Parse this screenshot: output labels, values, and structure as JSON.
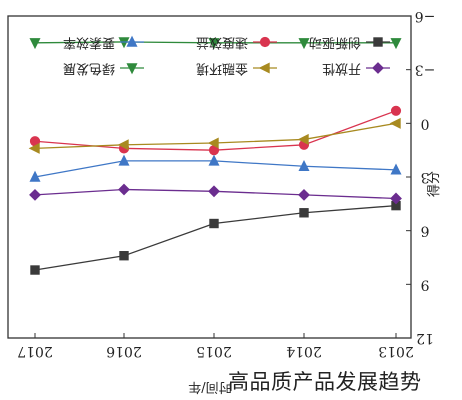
{
  "caption": "高品质产品发展趋势",
  "chart_data": {
    "type": "line",
    "orientation": "rotated-180",
    "xlabel": "时间/年",
    "ylabel": "得分",
    "categories": [
      "2013",
      "2014",
      "2015",
      "2016",
      "2017"
    ],
    "yticks": [
      "−6",
      "−3",
      "0",
      "3",
      "6",
      "9",
      "12"
    ],
    "ylim": [
      -6,
      12
    ],
    "grid": false,
    "legend_position": "top",
    "series": [
      {
        "name": "创新驱动",
        "color": "#3a3a3a",
        "marker": "square",
        "values": [
          4.6,
          5.0,
          5.6,
          7.4,
          8.2
        ]
      },
      {
        "name": "速度效益",
        "color": "#d9344f",
        "marker": "circle",
        "values": [
          -0.7,
          1.2,
          1.5,
          1.4,
          1.0
        ]
      },
      {
        "name": "要素效率",
        "color": "#3f77c6",
        "marker": "triangle",
        "values": [
          2.6,
          2.4,
          2.1,
          2.1,
          3.0
        ]
      },
      {
        "name": "开放性",
        "color": "#6b2d8f",
        "marker": "diamond",
        "values": [
          4.2,
          4.0,
          3.8,
          3.7,
          4.0
        ]
      },
      {
        "name": "金融环境",
        "color": "#a88a20",
        "marker": "tri-left",
        "values": [
          0.0,
          0.9,
          1.1,
          1.2,
          1.4
        ]
      },
      {
        "name": "绿色发展",
        "color": "#2f8a3c",
        "marker": "tri-down",
        "values": [
          -4.5,
          -4.5,
          -4.5,
          -4.55,
          -4.5
        ]
      }
    ]
  }
}
